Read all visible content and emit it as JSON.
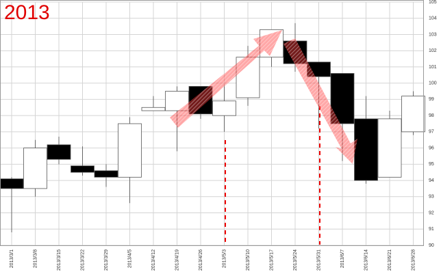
{
  "chart_data": {
    "type": "candlestick",
    "title": "2013",
    "categories": [
      "2013/3/1",
      "2013/3/8",
      "2013/3/15",
      "2013/3/22",
      "2013/3/29",
      "2013/4/5",
      "2013/4/12",
      "2013/4/19",
      "2013/4/26",
      "2013/5/3",
      "2013/5/10",
      "2013/5/17",
      "2013/5/24",
      "2013/5/31",
      "2013/6/7",
      "2013/6/14",
      "2013/6/21",
      "2013/6/28"
    ],
    "open": [
      94.1,
      93.5,
      96.2,
      94.9,
      94.6,
      94.2,
      98.3,
      98.3,
      99.8,
      98.0,
      99.1,
      101.6,
      102.6,
      101.3,
      100.6,
      97.8,
      94.2,
      97.0
    ],
    "high": [
      94.2,
      96.5,
      96.7,
      96.1,
      95.0,
      97.9,
      99.2,
      99.8,
      99.8,
      99.9,
      102.3,
      103.3,
      103.7,
      101.3,
      100.6,
      99.2,
      98.3,
      99.5
    ],
    "low": [
      90.8,
      93.0,
      95.0,
      94.3,
      93.6,
      92.6,
      98.3,
      95.8,
      97.8,
      97.0,
      98.6,
      101.0,
      100.7,
      97.2,
      95.2,
      93.8,
      94.2,
      96.8
    ],
    "close": [
      93.5,
      96.0,
      95.3,
      94.5,
      94.2,
      97.5,
      98.5,
      99.5,
      98.1,
      98.9,
      101.6,
      103.3,
      101.2,
      100.4,
      97.5,
      94.0,
      97.8,
      99.2
    ],
    "up_color": "#ffffff",
    "down_color": "#000000",
    "ylim": [
      90,
      105
    ],
    "yticks": [
      90,
      91,
      92,
      93,
      94,
      95,
      96,
      97,
      98,
      99,
      100,
      101,
      102,
      103,
      104,
      105
    ],
    "grid": true
  }
}
